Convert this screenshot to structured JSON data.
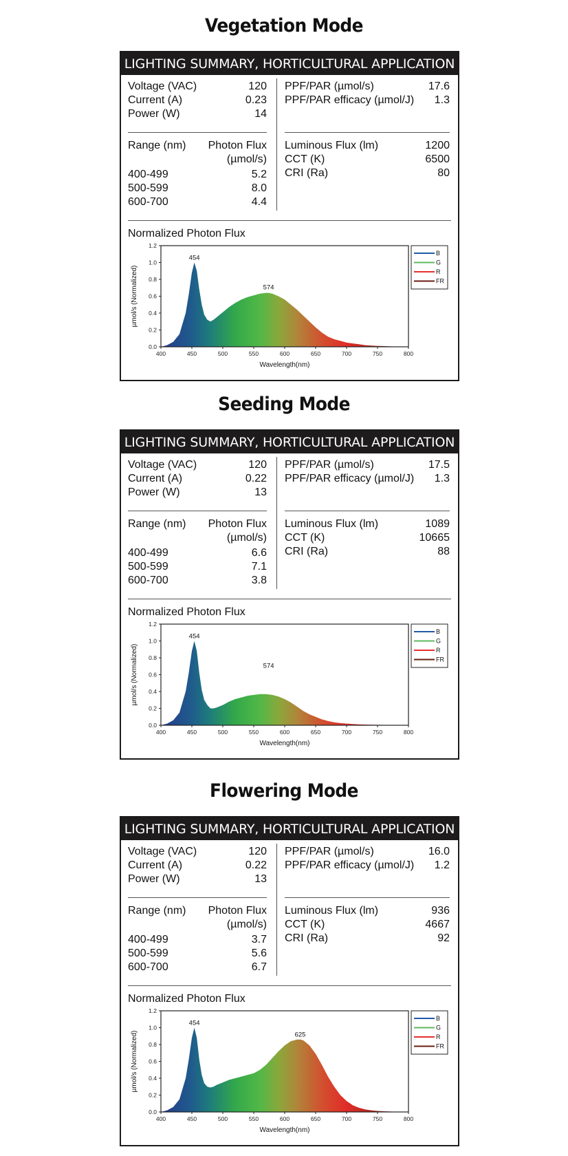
{
  "header_label": "LIGHTING SUMMARY, HORTICULTURAL APPLICATION",
  "chart_title": "Normalized Photon Flux",
  "range_header": "Range (nm)",
  "photon_header_1": "Photon Flux",
  "photon_header_2": "(µmol/s)",
  "modes": [
    {
      "title": "Vegetation Mode",
      "electrical": [
        {
          "label": "Voltage (VAC)",
          "value": "120"
        },
        {
          "label": "Current (A)",
          "value": "0.23"
        },
        {
          "label": "Power (W)",
          "value": "14"
        }
      ],
      "ranges": [
        {
          "label": "400-499",
          "value": "5.2"
        },
        {
          "label": "500-599",
          "value": "8.0"
        },
        {
          "label": "600-700",
          "value": "4.4"
        }
      ],
      "ppf": [
        {
          "label": "PPF/PAR (µmol/s)",
          "value": "17.6"
        },
        {
          "label": "PPF/PAR efficacy (µmol/J)",
          "value": "1.3"
        }
      ],
      "lum": [
        {
          "label": "Luminous Flux (lm)",
          "value": "1200"
        },
        {
          "label": "CCT (K)",
          "value": "6500"
        },
        {
          "label": "CRI (Ra)",
          "value": "80"
        }
      ]
    },
    {
      "title": "Seeding Mode",
      "electrical": [
        {
          "label": "Voltage (VAC)",
          "value": "120"
        },
        {
          "label": "Current (A)",
          "value": "0.22"
        },
        {
          "label": "Power (W)",
          "value": "13"
        }
      ],
      "ranges": [
        {
          "label": "400-499",
          "value": "6.6"
        },
        {
          "label": "500-599",
          "value": "7.1"
        },
        {
          "label": "600-700",
          "value": "3.8"
        }
      ],
      "ppf": [
        {
          "label": "PPF/PAR (µmol/s)",
          "value": "17.5"
        },
        {
          "label": "PPF/PAR efficacy (µmol/J)",
          "value": "1.3"
        }
      ],
      "lum": [
        {
          "label": "Luminous Flux (lm)",
          "value": "1089"
        },
        {
          "label": "CCT (K)",
          "value": "10665"
        },
        {
          "label": "CRI (Ra)",
          "value": "88"
        }
      ]
    },
    {
      "title": "Flowering Mode",
      "electrical": [
        {
          "label": "Voltage (VAC)",
          "value": "120"
        },
        {
          "label": "Current (A)",
          "value": "0.22"
        },
        {
          "label": "Power (W)",
          "value": "13"
        }
      ],
      "ranges": [
        {
          "label": "400-499",
          "value": "3.7"
        },
        {
          "label": "500-599",
          "value": "5.6"
        },
        {
          "label": "600-700",
          "value": "6.7"
        }
      ],
      "ppf": [
        {
          "label": "PPF/PAR (µmol/s)",
          "value": "16.0"
        },
        {
          "label": "PPF/PAR efficacy (µmol/J)",
          "value": "1.2"
        }
      ],
      "lum": [
        {
          "label": "Luminous Flux (lm)",
          "value": "936"
        },
        {
          "label": "CCT (K)",
          "value": "4667"
        },
        {
          "label": "CRI (Ra)",
          "value": "92"
        }
      ]
    }
  ],
  "chart_data": [
    {
      "type": "area",
      "title": "Normalized Photon Flux",
      "xlabel": "Wavelength(nm)",
      "ylabel": "µmol/s (Normalized)",
      "xlim": [
        400,
        800
      ],
      "ylim": [
        0,
        1.2
      ],
      "x_ticks": [
        "400",
        "450",
        "500",
        "550",
        "600",
        "650",
        "700",
        "750",
        "800"
      ],
      "y_ticks": [
        "0.0",
        "0.2",
        "0.4",
        "0.6",
        "0.8",
        "1.0",
        "1.2"
      ],
      "legend": [
        "B",
        "G",
        "R",
        "FR"
      ],
      "legend_position": "top-right",
      "legend_colors": [
        "#1f5aa6",
        "#5cb85c",
        "#e8312a",
        "#6b1d12"
      ],
      "annotations": [
        {
          "x": 454,
          "y": 1.0,
          "text": "454"
        },
        {
          "x": 574,
          "y": 0.65,
          "text": "574"
        }
      ],
      "x": [
        400,
        410,
        420,
        430,
        440,
        445,
        450,
        454,
        458,
        462,
        466,
        470,
        475,
        480,
        485,
        490,
        500,
        510,
        520,
        530,
        540,
        550,
        560,
        570,
        574,
        580,
        590,
        600,
        610,
        620,
        630,
        640,
        650,
        660,
        670,
        680,
        690,
        700,
        710,
        720,
        730,
        740,
        750,
        760,
        770,
        780,
        790,
        800
      ],
      "y": [
        0.0,
        0.02,
        0.06,
        0.15,
        0.4,
        0.62,
        0.88,
        1.0,
        0.9,
        0.68,
        0.5,
        0.38,
        0.32,
        0.3,
        0.32,
        0.35,
        0.41,
        0.47,
        0.52,
        0.56,
        0.59,
        0.61,
        0.63,
        0.64,
        0.64,
        0.63,
        0.6,
        0.56,
        0.5,
        0.44,
        0.37,
        0.3,
        0.23,
        0.17,
        0.12,
        0.09,
        0.07,
        0.05,
        0.04,
        0.03,
        0.02,
        0.015,
        0.01,
        0.008,
        0.005,
        0.003,
        0.002,
        0.0
      ]
    },
    {
      "type": "area",
      "title": "Normalized Photon Flux",
      "xlabel": "Wavelength(nm)",
      "ylabel": "µmol/s (Normalized)",
      "xlim": [
        400,
        800
      ],
      "ylim": [
        0,
        1.2
      ],
      "x_ticks": [
        "400",
        "450",
        "500",
        "550",
        "600",
        "650",
        "700",
        "750",
        "800"
      ],
      "y_ticks": [
        "0.0",
        "0.2",
        "0.4",
        "0.6",
        "0.8",
        "1.0",
        "1.2"
      ],
      "legend": [
        "B",
        "G",
        "R",
        "FR"
      ],
      "legend_position": "top-right",
      "legend_colors": [
        "#1f5aa6",
        "#5cb85c",
        "#e8312a",
        "#6b1d12"
      ],
      "annotations": [
        {
          "x": 454,
          "y": 1.0,
          "text": "454"
        },
        {
          "x": 574,
          "y": 0.65,
          "text": "574"
        }
      ],
      "x": [
        400,
        410,
        420,
        430,
        440,
        445,
        450,
        454,
        458,
        462,
        466,
        470,
        475,
        480,
        485,
        490,
        500,
        510,
        520,
        530,
        540,
        550,
        560,
        570,
        580,
        590,
        600,
        610,
        620,
        630,
        640,
        650,
        660,
        670,
        680,
        690,
        700,
        710,
        720,
        730,
        740,
        750,
        760,
        770,
        780,
        790,
        800
      ],
      "y": [
        0.0,
        0.02,
        0.06,
        0.15,
        0.4,
        0.62,
        0.88,
        1.0,
        0.88,
        0.62,
        0.42,
        0.3,
        0.24,
        0.2,
        0.2,
        0.21,
        0.24,
        0.28,
        0.31,
        0.33,
        0.35,
        0.36,
        0.37,
        0.37,
        0.36,
        0.34,
        0.31,
        0.27,
        0.22,
        0.17,
        0.13,
        0.1,
        0.07,
        0.05,
        0.035,
        0.025,
        0.02,
        0.015,
        0.01,
        0.008,
        0.006,
        0.005,
        0.004,
        0.003,
        0.002,
        0.001,
        0.0
      ]
    },
    {
      "type": "area",
      "title": "Normalized Photon Flux",
      "xlabel": "Wavelength(nm)",
      "ylabel": "µmol/s (Normalized)",
      "xlim": [
        400,
        800
      ],
      "ylim": [
        0,
        1.2
      ],
      "x_ticks": [
        "400",
        "450",
        "500",
        "550",
        "600",
        "650",
        "700",
        "750",
        "800"
      ],
      "y_ticks": [
        "0.0",
        "0.2",
        "0.4",
        "0.6",
        "0.8",
        "1.0",
        "1.2"
      ],
      "legend": [
        "B",
        "G",
        "R",
        "FR"
      ],
      "legend_position": "top-right",
      "legend_colors": [
        "#1f5aa6",
        "#5cb85c",
        "#e8312a",
        "#6b1d12"
      ],
      "annotations": [
        {
          "x": 454,
          "y": 1.0,
          "text": "454"
        },
        {
          "x": 625,
          "y": 0.86,
          "text": "625"
        }
      ],
      "x": [
        400,
        410,
        420,
        430,
        440,
        445,
        450,
        454,
        458,
        462,
        466,
        470,
        475,
        480,
        485,
        490,
        500,
        510,
        520,
        530,
        540,
        550,
        560,
        570,
        580,
        590,
        600,
        610,
        620,
        625,
        630,
        640,
        650,
        660,
        670,
        680,
        690,
        700,
        710,
        720,
        730,
        740,
        750,
        760,
        770,
        780,
        790,
        800
      ],
      "y": [
        0.0,
        0.02,
        0.06,
        0.15,
        0.4,
        0.62,
        0.88,
        1.0,
        0.88,
        0.62,
        0.44,
        0.34,
        0.3,
        0.29,
        0.3,
        0.32,
        0.35,
        0.38,
        0.4,
        0.42,
        0.44,
        0.46,
        0.5,
        0.56,
        0.64,
        0.72,
        0.79,
        0.84,
        0.86,
        0.86,
        0.85,
        0.79,
        0.69,
        0.56,
        0.42,
        0.3,
        0.2,
        0.13,
        0.08,
        0.05,
        0.03,
        0.02,
        0.012,
        0.008,
        0.005,
        0.003,
        0.002,
        0.0
      ]
    }
  ]
}
